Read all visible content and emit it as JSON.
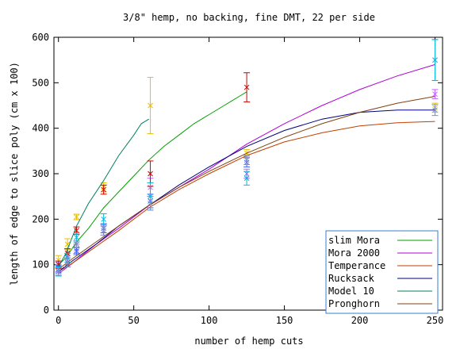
{
  "chart_data": {
    "type": "line",
    "title": "3/8\" hemp, no backing, fine DMT, 22 per side",
    "xlabel": "number of hemp cuts",
    "ylabel": "length of edge to slice poly (cm x 100)",
    "xlim": [
      -3,
      255
    ],
    "ylim": [
      0,
      600
    ],
    "x_ticks": [
      0,
      50,
      100,
      150,
      200,
      250
    ],
    "y_ticks": [
      0,
      100,
      200,
      300,
      400,
      500,
      600
    ],
    "legend_position": "bottom-right",
    "series": [
      {
        "name": "slim Mora",
        "color": "#00a000",
        "curve": [
          [
            0,
            100
          ],
          [
            5,
            115
          ],
          [
            12,
            150
          ],
          [
            20,
            180
          ],
          [
            30,
            225
          ],
          [
            40,
            260
          ],
          [
            50,
            295
          ],
          [
            60,
            330
          ],
          [
            70,
            360
          ],
          [
            80,
            385
          ],
          [
            90,
            410
          ],
          [
            100,
            430
          ],
          [
            110,
            450
          ],
          [
            120,
            470
          ],
          [
            125,
            480
          ]
        ],
        "points": [
          {
            "x": 0,
            "y": 110,
            "err": 10
          },
          {
            "x": 6,
            "y": 145,
            "err": 12
          },
          {
            "x": 12,
            "y": 205,
            "err": 6
          },
          {
            "x": 30,
            "y": 270,
            "err": 10
          },
          {
            "x": 61,
            "y": 450,
            "err": 62
          },
          {
            "x": 125,
            "y": 345,
            "err": 8
          },
          {
            "x": 250,
            "y": 445,
            "err": 10
          }
        ],
        "point_color": "#e8c000"
      },
      {
        "name": "Mora 2000",
        "color": "#b000d8",
        "curve": [
          [
            0,
            80
          ],
          [
            10,
            105
          ],
          [
            25,
            145
          ],
          [
            40,
            180
          ],
          [
            60,
            230
          ],
          [
            80,
            270
          ],
          [
            100,
            310
          ],
          [
            125,
            365
          ],
          [
            150,
            410
          ],
          [
            175,
            450
          ],
          [
            200,
            485
          ],
          [
            225,
            515
          ],
          [
            250,
            540
          ]
        ],
        "points": [
          {
            "x": 0,
            "y": 95,
            "err": 10
          },
          {
            "x": 6,
            "y": 110,
            "err": 10
          },
          {
            "x": 12,
            "y": 135,
            "err": 10
          },
          {
            "x": 30,
            "y": 175,
            "err": 10
          },
          {
            "x": 61,
            "y": 270,
            "err": 20
          },
          {
            "x": 125,
            "y": 300,
            "err": 10
          },
          {
            "x": 250,
            "y": 475,
            "err": 10
          }
        ],
        "point_color": "#c060ff"
      },
      {
        "name": "Temperance",
        "color": "#c04000",
        "curve": [
          [
            0,
            85
          ],
          [
            10,
            105
          ],
          [
            25,
            140
          ],
          [
            40,
            175
          ],
          [
            60,
            225
          ],
          [
            80,
            265
          ],
          [
            100,
            300
          ],
          [
            125,
            340
          ],
          [
            150,
            370
          ],
          [
            175,
            390
          ],
          [
            200,
            405
          ],
          [
            225,
            412
          ],
          [
            250,
            415
          ]
        ],
        "points": [
          {
            "x": 0,
            "y": 100,
            "err": 8
          },
          {
            "x": 6,
            "y": 125,
            "err": 10
          },
          {
            "x": 12,
            "y": 175,
            "err": 8
          },
          {
            "x": 30,
            "y": 265,
            "err": 10
          },
          {
            "x": 61,
            "y": 300,
            "err": 28
          },
          {
            "x": 125,
            "y": 490,
            "err": 32
          }
        ],
        "point_color": "#d00000"
      },
      {
        "name": "Rucksack",
        "color": "#000080",
        "curve": [
          [
            0,
            85
          ],
          [
            10,
            110
          ],
          [
            25,
            145
          ],
          [
            40,
            185
          ],
          [
            60,
            230
          ],
          [
            80,
            275
          ],
          [
            100,
            315
          ],
          [
            125,
            360
          ],
          [
            150,
            395
          ],
          [
            175,
            420
          ],
          [
            200,
            435
          ],
          [
            225,
            440
          ],
          [
            250,
            440
          ]
        ],
        "points": [
          {
            "x": 0,
            "y": 90,
            "err": 8
          },
          {
            "x": 6,
            "y": 105,
            "err": 10
          },
          {
            "x": 12,
            "y": 130,
            "err": 8
          },
          {
            "x": 30,
            "y": 180,
            "err": 10
          },
          {
            "x": 61,
            "y": 240,
            "err": 15
          },
          {
            "x": 125,
            "y": 325,
            "err": 10
          },
          {
            "x": 250,
            "y": 550,
            "err": 45
          }
        ],
        "point_color": "#4060ff"
      },
      {
        "name": "Model 10",
        "color": "#008060",
        "curve": [
          [
            0,
            95
          ],
          [
            5,
            125
          ],
          [
            12,
            185
          ],
          [
            20,
            235
          ],
          [
            30,
            285
          ],
          [
            40,
            340
          ],
          [
            50,
            385
          ],
          [
            55,
            410
          ],
          [
            60,
            420
          ]
        ],
        "points": [
          {
            "x": 0,
            "y": 85,
            "err": 10
          },
          {
            "x": 6,
            "y": 115,
            "err": 10
          },
          {
            "x": 12,
            "y": 160,
            "err": 10
          },
          {
            "x": 30,
            "y": 200,
            "err": 12
          },
          {
            "x": 61,
            "y": 250,
            "err": 30
          },
          {
            "x": 125,
            "y": 290,
            "err": 15
          },
          {
            "x": 250,
            "y": 550,
            "err": 45
          }
        ],
        "point_color": "#00b8e0"
      },
      {
        "name": "Pronghorn",
        "color": "#804010",
        "curve": [
          [
            0,
            90
          ],
          [
            10,
            115
          ],
          [
            25,
            150
          ],
          [
            40,
            185
          ],
          [
            60,
            230
          ],
          [
            80,
            270
          ],
          [
            100,
            305
          ],
          [
            125,
            345
          ],
          [
            150,
            380
          ],
          [
            175,
            410
          ],
          [
            200,
            435
          ],
          [
            225,
            455
          ],
          [
            250,
            470
          ]
        ],
        "points": [
          {
            "x": 0,
            "y": 85,
            "err": 8
          },
          {
            "x": 6,
            "y": 105,
            "err": 10
          },
          {
            "x": 12,
            "y": 145,
            "err": 8
          },
          {
            "x": 30,
            "y": 175,
            "err": 10
          },
          {
            "x": 61,
            "y": 235,
            "err": 15
          },
          {
            "x": 125,
            "y": 330,
            "err": 10
          },
          {
            "x": 250,
            "y": 440,
            "err": 12
          }
        ],
        "point_color": "#8090c0"
      }
    ]
  }
}
